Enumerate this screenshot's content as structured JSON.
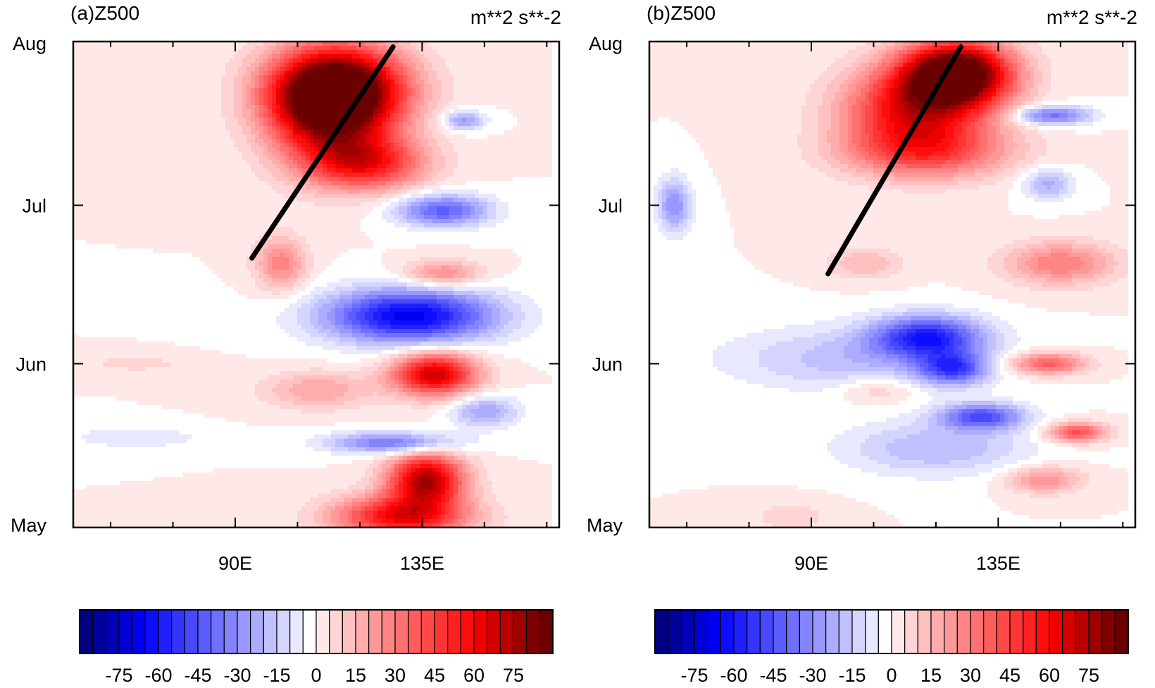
{
  "chart_data": [
    {
      "type": "heatmap",
      "panel_label": "(a)Z500",
      "units": "m**2 s**-2",
      "x_ticks": [
        {
          "label": "90E",
          "value": 90
        },
        {
          "label": "135E",
          "value": 135
        }
      ],
      "x_range": [
        51,
        168
      ],
      "y_ticks": [
        {
          "label": "May",
          "value": 0
        },
        {
          "label": "Jun",
          "value": 31
        },
        {
          "label": "Jul",
          "value": 61
        },
        {
          "label": "Aug",
          "value": 92
        }
      ],
      "y_range": [
        0,
        92
      ],
      "anomaly_centers": [
        {
          "lon": 115,
          "day": 83,
          "value": 90,
          "rx": 16,
          "ry": 8
        },
        {
          "lon": 112,
          "day": 78,
          "value": 55,
          "rx": 14,
          "ry": 10
        },
        {
          "lon": 122,
          "day": 69,
          "value": 50,
          "rx": 14,
          "ry": 5
        },
        {
          "lon": 101,
          "day": 50,
          "value": 28,
          "rx": 6,
          "ry": 5
        },
        {
          "lon": 140,
          "day": 48,
          "value": 28,
          "rx": 9,
          "ry": 2.5
        },
        {
          "lon": 140,
          "day": 60,
          "value": -42,
          "rx": 11,
          "ry": 3
        },
        {
          "lon": 145,
          "day": 77,
          "value": -28,
          "rx": 5,
          "ry": 1.8
        },
        {
          "lon": 132,
          "day": 40,
          "value": -68,
          "rx": 20,
          "ry": 5
        },
        {
          "lon": 138,
          "day": 29,
          "value": 70,
          "rx": 10,
          "ry": 4
        },
        {
          "lon": 110,
          "day": 26,
          "value": 20,
          "rx": 13,
          "ry": 3.5
        },
        {
          "lon": 128,
          "day": 16,
          "value": -38,
          "rx": 15,
          "ry": 2
        },
        {
          "lon": 150,
          "day": 22,
          "value": -25,
          "rx": 8,
          "ry": 3
        },
        {
          "lon": 136,
          "day": 9,
          "value": 75,
          "rx": 9,
          "ry": 5
        },
        {
          "lon": 130,
          "day": 2,
          "value": 60,
          "rx": 16,
          "ry": 4
        },
        {
          "lon": 66,
          "day": 31,
          "value": 8,
          "rx": 12,
          "ry": 1.5
        },
        {
          "lon": 66,
          "day": 17,
          "value": -10,
          "rx": 16,
          "ry": 2
        }
      ],
      "trend_line": [
        {
          "lon": 94,
          "day": 51
        },
        {
          "lon": 128,
          "day": 91
        }
      ]
    },
    {
      "type": "heatmap",
      "panel_label": "(b)Z500",
      "units": "m**2 s**-2",
      "x_ticks": [
        {
          "label": "90E",
          "value": 90
        },
        {
          "label": "135E",
          "value": 135
        }
      ],
      "x_range": [
        51,
        168
      ],
      "y_ticks": [
        {
          "label": "May",
          "value": 0
        },
        {
          "label": "Jun",
          "value": 31
        },
        {
          "label": "Jul",
          "value": 61
        },
        {
          "label": "Aug",
          "value": 92
        }
      ],
      "y_range": [
        0,
        92
      ],
      "anomaly_centers": [
        {
          "lon": 125,
          "day": 86,
          "value": 100,
          "rx": 13,
          "ry": 6
        },
        {
          "lon": 115,
          "day": 79,
          "value": 60,
          "rx": 17,
          "ry": 8
        },
        {
          "lon": 118,
          "day": 71,
          "value": 35,
          "rx": 20,
          "ry": 5
        },
        {
          "lon": 148,
          "day": 78,
          "value": -38,
          "rx": 9,
          "ry": 1.8
        },
        {
          "lon": 147,
          "day": 65,
          "value": -22,
          "rx": 6,
          "ry": 3
        },
        {
          "lon": 57,
          "day": 61,
          "value": -30,
          "rx": 4,
          "ry": 5
        },
        {
          "lon": 150,
          "day": 50,
          "value": 30,
          "rx": 13,
          "ry": 4
        },
        {
          "lon": 103,
          "day": 50,
          "value": 15,
          "rx": 9,
          "ry": 3
        },
        {
          "lon": 118,
          "day": 36,
          "value": -55,
          "rx": 13,
          "ry": 4
        },
        {
          "lon": 124,
          "day": 30,
          "value": -45,
          "rx": 8,
          "ry": 3
        },
        {
          "lon": 131,
          "day": 21,
          "value": -45,
          "rx": 10,
          "ry": 2.5
        },
        {
          "lon": 100,
          "day": 32,
          "value": -18,
          "rx": 30,
          "ry": 6
        },
        {
          "lon": 120,
          "day": 15,
          "value": -20,
          "rx": 22,
          "ry": 5
        },
        {
          "lon": 147,
          "day": 31,
          "value": 38,
          "rx": 9,
          "ry": 2
        },
        {
          "lon": 154,
          "day": 18,
          "value": 42,
          "rx": 7,
          "ry": 1.8
        },
        {
          "lon": 146,
          "day": 9,
          "value": 25,
          "rx": 9,
          "ry": 2.5
        },
        {
          "lon": 106,
          "day": 26,
          "value": 12,
          "rx": 9,
          "ry": 2.5
        },
        {
          "lon": 85,
          "day": 2,
          "value": 8,
          "rx": 10,
          "ry": 3
        }
      ],
      "trend_line": [
        {
          "lon": 94,
          "day": 48
        },
        {
          "lon": 126,
          "day": 91
        }
      ]
    }
  ],
  "colorbar": {
    "levels": [
      -85,
      -80,
      -75,
      -70,
      -65,
      -60,
      -55,
      -50,
      -45,
      -40,
      -35,
      -30,
      -25,
      -20,
      -15,
      -10,
      -5,
      0,
      5,
      10,
      15,
      20,
      25,
      30,
      35,
      40,
      45,
      50,
      55,
      60,
      65,
      70,
      75,
      80,
      85
    ],
    "labels": [
      "-75",
      "-60",
      "-45",
      "-30",
      "-15",
      "0",
      "15",
      "30",
      "45",
      "60",
      "75"
    ],
    "label_values": [
      -75,
      -60,
      -45,
      -30,
      -15,
      0,
      15,
      30,
      45,
      60,
      75
    ],
    "colors": [
      "#000080",
      "#00009c",
      "#0000b8",
      "#0000d4",
      "#0000f0",
      "#0d0dff",
      "#2020ff",
      "#3434ff",
      "#4848ff",
      "#5c5cff",
      "#7070ff",
      "#8484ff",
      "#9898ff",
      "#acacff",
      "#c0c0ff",
      "#d4d4ff",
      "#e8e8ff",
      "#ffffff",
      "#ffe8e8",
      "#ffd4d4",
      "#ffc0c0",
      "#ffacac",
      "#ff9898",
      "#ff8484",
      "#ff7070",
      "#ff5c5c",
      "#ff4848",
      "#ff3434",
      "#ff2020",
      "#ff0d0d",
      "#f00000",
      "#d40000",
      "#b80000",
      "#9c0000",
      "#800000",
      "#6a0000"
    ]
  }
}
